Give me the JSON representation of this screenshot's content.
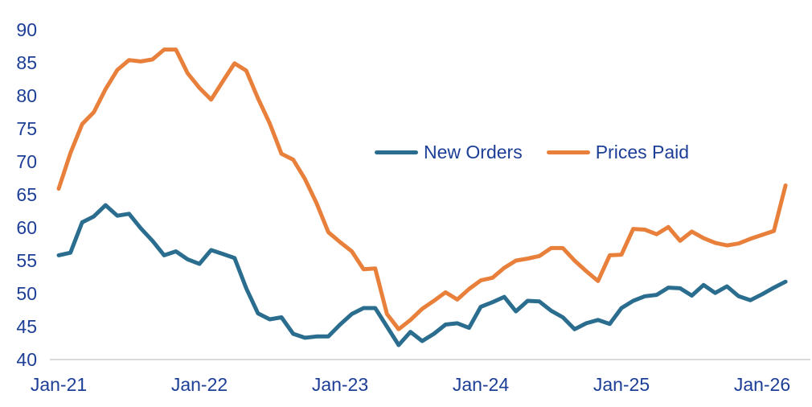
{
  "chart_data": {
    "type": "line",
    "title": "",
    "xlabel": "",
    "ylabel": "",
    "grid": false,
    "ylim": [
      40,
      90
    ],
    "yticks": [
      40,
      45,
      50,
      55,
      60,
      65,
      70,
      75,
      80,
      85,
      90
    ],
    "x_tick_labels": [
      "Jan-21",
      "Jan-22",
      "Jan-23",
      "Jan-24",
      "Jan-25",
      "Jan-26"
    ],
    "legend_position": "upper-center-right",
    "x": [
      "Jan-21",
      "Feb-21",
      "Mar-21",
      "Apr-21",
      "May-21",
      "Jun-21",
      "Jul-21",
      "Aug-21",
      "Sep-21",
      "Oct-21",
      "Nov-21",
      "Dec-21",
      "Jan-22",
      "Feb-22",
      "Mar-22",
      "Apr-22",
      "May-22",
      "Jun-22",
      "Jul-22",
      "Aug-22",
      "Sep-22",
      "Oct-22",
      "Nov-22",
      "Dec-22",
      "Jan-23",
      "Feb-23",
      "Mar-23",
      "Apr-23",
      "May-23",
      "Jun-23",
      "Jul-23",
      "Aug-23",
      "Sep-23",
      "Oct-23",
      "Nov-23",
      "Dec-23",
      "Jan-24",
      "Feb-24",
      "Mar-24",
      "Apr-24",
      "May-24",
      "Jun-24",
      "Jul-24",
      "Aug-24",
      "Sep-24",
      "Oct-24",
      "Nov-24",
      "Dec-24",
      "Jan-25",
      "Feb-25",
      "Mar-25",
      "Apr-25",
      "May-25",
      "Jun-25",
      "Jul-25",
      "Aug-25",
      "Sep-25",
      "Oct-25",
      "Nov-25",
      "Dec-25",
      "Jan-26",
      "Feb-26",
      "Mar-26"
    ],
    "series": [
      {
        "name": "New Orders",
        "color": "#2a6d8e",
        "values": [
          55.8,
          56.2,
          60.8,
          61.7,
          63.4,
          61.8,
          62.1,
          59.9,
          58.0,
          55.8,
          56.4,
          55.2,
          54.5,
          56.6,
          56.0,
          55.4,
          50.8,
          47.0,
          46.1,
          46.4,
          43.9,
          43.3,
          43.5,
          43.5,
          45.3,
          46.9,
          47.8,
          47.8,
          45.0,
          42.2,
          44.2,
          42.8,
          43.9,
          45.3,
          45.5,
          44.8,
          48.0,
          48.7,
          49.5,
          47.3,
          48.9,
          48.8,
          47.4,
          46.4,
          44.6,
          45.5,
          46.0,
          45.4,
          47.8,
          48.9,
          49.6,
          49.8,
          50.9,
          50.8,
          49.7,
          51.3,
          50.1,
          51.1,
          49.6,
          49.0,
          49.9,
          50.9,
          51.8
        ]
      },
      {
        "name": "Prices Paid",
        "color": "#e8803c",
        "values": [
          65.9,
          71.3,
          75.7,
          77.5,
          81.0,
          83.9,
          85.4,
          85.2,
          85.5,
          87.0,
          87.0,
          83.4,
          81.2,
          79.4,
          82.2,
          84.9,
          83.8,
          79.6,
          75.8,
          71.2,
          70.3,
          67.4,
          63.7,
          59.3,
          57.8,
          56.4,
          53.7,
          53.8,
          46.9,
          44.6,
          46.0,
          47.7,
          48.9,
          50.2,
          49.1,
          50.7,
          52.0,
          52.4,
          53.9,
          55.0,
          55.3,
          55.7,
          56.9,
          56.9,
          55.0,
          53.4,
          51.9,
          55.8,
          55.9,
          59.8,
          59.7,
          59.0,
          60.1,
          58.0,
          59.4,
          58.4,
          57.7,
          57.3,
          57.6,
          58.3,
          58.9,
          59.5,
          66.4
        ]
      }
    ]
  },
  "legend": {
    "items": [
      {
        "label": "New Orders"
      },
      {
        "label": "Prices Paid"
      }
    ]
  },
  "colors": {
    "text": "#1d3e96",
    "axis_line": "#d9d9d9",
    "background": "#ffffff"
  }
}
